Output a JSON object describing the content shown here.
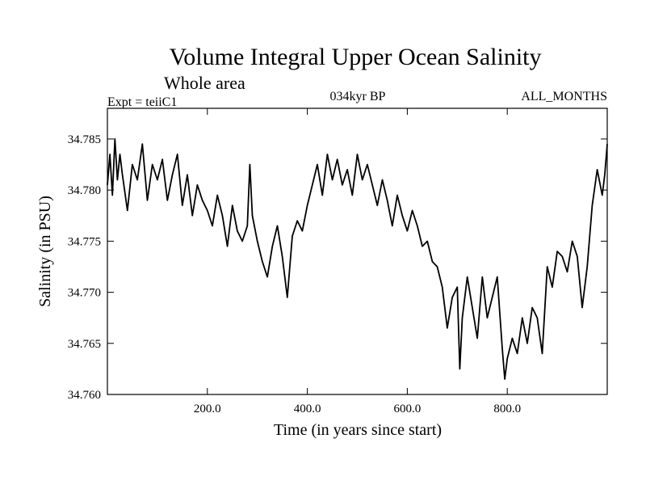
{
  "colors": {
    "background": "#ffffff",
    "line": "#000000",
    "frame": "#000000"
  },
  "chart_data": {
    "type": "line",
    "title": "Volume Integral Upper Ocean Salinity",
    "subtitle": "Whole area",
    "experiment_label": "Expt = teiiC1",
    "period_label": "034kyr BP",
    "months_label": "ALL_MONTHS",
    "xlabel": "Time (in years since start)",
    "ylabel": "Salinity (in PSU)",
    "xlim": [
      0,
      1000
    ],
    "ylim": [
      34.76,
      34.788
    ],
    "x_ticks": [
      "200.0",
      "400.0",
      "600.0",
      "800.0"
    ],
    "y_ticks": [
      "34.760",
      "34.765",
      "34.770",
      "34.775",
      "34.780",
      "34.785"
    ],
    "grid": false,
    "series": [
      {
        "x": [
          0,
          5,
          10,
          15,
          20,
          25,
          30,
          40,
          50,
          60,
          70,
          80,
          90,
          100,
          110,
          120,
          130,
          140,
          150,
          160,
          170,
          180,
          190,
          200,
          210,
          220,
          230,
          240,
          250,
          260,
          270,
          280,
          285,
          290,
          300,
          310,
          320,
          330,
          340,
          350,
          360,
          370,
          380,
          390,
          400,
          410,
          420,
          430,
          440,
          450,
          460,
          470,
          480,
          490,
          500,
          510,
          520,
          530,
          540,
          550,
          560,
          570,
          580,
          590,
          600,
          610,
          620,
          630,
          640,
          650,
          660,
          670,
          680,
          690,
          700,
          705,
          710,
          720,
          730,
          740,
          750,
          760,
          770,
          780,
          790,
          795,
          800,
          810,
          820,
          830,
          840,
          850,
          860,
          870,
          880,
          890,
          900,
          910,
          920,
          930,
          940,
          950,
          960,
          970,
          980,
          990,
          995,
          1000
        ],
        "y": [
          34.7805,
          34.7835,
          34.7795,
          34.785,
          34.781,
          34.7835,
          34.7815,
          34.778,
          34.7825,
          34.781,
          34.7845,
          34.779,
          34.7825,
          34.781,
          34.783,
          34.779,
          34.7815,
          34.7835,
          34.7785,
          34.7815,
          34.7775,
          34.7805,
          34.779,
          34.778,
          34.7765,
          34.7795,
          34.7775,
          34.7745,
          34.7785,
          34.776,
          34.775,
          34.7765,
          34.7825,
          34.7775,
          34.775,
          34.773,
          34.7715,
          34.7745,
          34.7765,
          34.7735,
          34.7695,
          34.7755,
          34.777,
          34.776,
          34.7785,
          34.7805,
          34.7825,
          34.7795,
          34.7835,
          34.781,
          34.783,
          34.7805,
          34.782,
          34.7795,
          34.7835,
          34.781,
          34.7825,
          34.7805,
          34.7785,
          34.781,
          34.779,
          34.7765,
          34.7795,
          34.7775,
          34.776,
          34.778,
          34.7765,
          34.7745,
          34.775,
          34.773,
          34.7725,
          34.7705,
          34.7665,
          34.7695,
          34.7705,
          34.7625,
          34.7675,
          34.7715,
          34.7685,
          34.7655,
          34.7715,
          34.7675,
          34.7695,
          34.7715,
          34.7645,
          34.7615,
          34.7635,
          34.7655,
          34.764,
          34.7675,
          34.765,
          34.7685,
          34.7675,
          34.764,
          34.7725,
          34.7705,
          34.774,
          34.7735,
          34.772,
          34.775,
          34.7735,
          34.7685,
          34.7725,
          34.7785,
          34.782,
          34.7795,
          34.7815,
          34.7845
        ]
      }
    ]
  }
}
